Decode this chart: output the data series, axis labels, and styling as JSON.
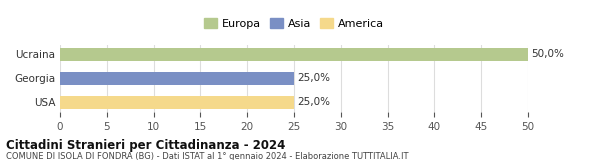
{
  "categories": [
    "USA",
    "Georgia",
    "Ucraina"
  ],
  "values": [
    25.0,
    25.0,
    50.0
  ],
  "colors": [
    "#f5d98b",
    "#7a8fc4",
    "#b5c98e"
  ],
  "bar_colors_legend": [
    "#b5c98e",
    "#7a8fc4",
    "#f5d98b"
  ],
  "legend_labels": [
    "Europa",
    "Asia",
    "America"
  ],
  "value_labels": [
    "25,0%",
    "25,0%",
    "50,0%"
  ],
  "xlim": [
    0,
    50
  ],
  "xticks": [
    0,
    5,
    10,
    15,
    20,
    25,
    30,
    35,
    40,
    45,
    50
  ],
  "title": "Cittadini Stranieri per Cittadinanza - 2024",
  "subtitle": "COMUNE DI ISOLA DI FONDRA (BG) - Dati ISTAT al 1° gennaio 2024 - Elaborazione TUTTITALIA.IT",
  "background_color": "#ffffff",
  "bar_height": 0.55,
  "grid_color": "#dddddd"
}
